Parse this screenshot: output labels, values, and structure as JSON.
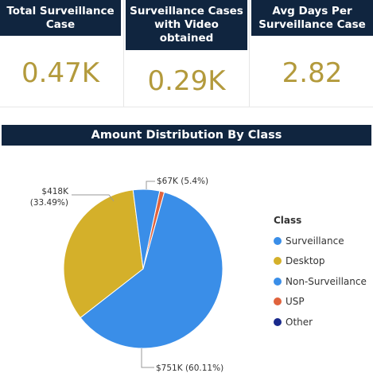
{
  "kpis": [
    {
      "title": "Total Surveillance Case",
      "value": "0.47K"
    },
    {
      "title": "Surveillance Cases with Video obtained",
      "value": "0.29K"
    },
    {
      "title": "Avg Days Per Surveillance Case",
      "value": "2.82"
    }
  ],
  "chart_data": {
    "type": "pie",
    "title": "Amount Distribution By Class",
    "legend_title": "Class",
    "legend": [
      {
        "name": "Surveillance",
        "color": "#3a8ee8"
      },
      {
        "name": "Desktop",
        "color": "#d4b02a"
      },
      {
        "name": "Non-Surveillance",
        "color": "#3a8ee8"
      },
      {
        "name": "USP",
        "color": "#e0633d"
      },
      {
        "name": "Other",
        "color": "#1a2a8c"
      }
    ],
    "slices": [
      {
        "value": 751,
        "percent": 60.11,
        "color": "#3a8ee8",
        "label": "$751K (60.11%)"
      },
      {
        "value": 418,
        "percent": 33.49,
        "color": "#d4b02a",
        "label_line1": "$418K",
        "label_line2": "(33.49%)"
      },
      {
        "value": 67,
        "percent": 5.4,
        "color": "#3a8ee8",
        "label": "$67K (5.4%)"
      },
      {
        "value": 12,
        "percent": 1.0,
        "color": "#e0633d"
      }
    ],
    "legend_position": "right"
  }
}
